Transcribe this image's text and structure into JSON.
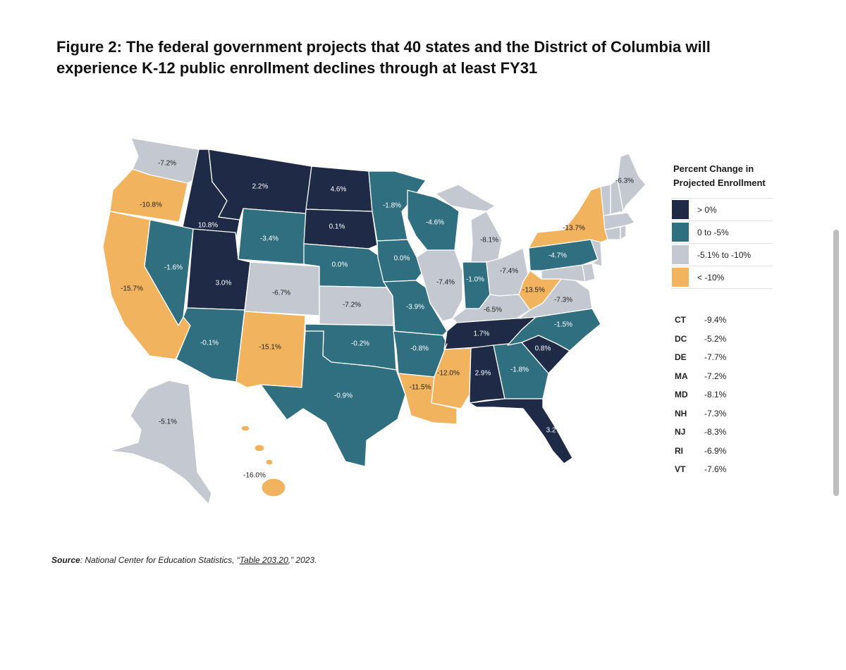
{
  "figure": {
    "title": "Figure 2: The federal government projects that 40 states and the District of Columbia will experience K-12 public enrollment declines through at least FY31"
  },
  "legend": {
    "title": "Percent Change in Projected Enrollment",
    "items": [
      {
        "label": "> 0%",
        "color": "#1e2a46"
      },
      {
        "label": "0 to -5%",
        "color": "#2f6f80"
      },
      {
        "label": "-5.1% to -10%",
        "color": "#c4c8d0"
      },
      {
        "label": "< -10%",
        "color": "#f2b35e"
      }
    ]
  },
  "small_states": [
    {
      "abbr": "CT",
      "value": "-9.4%"
    },
    {
      "abbr": "DC",
      "value": "-5.2%"
    },
    {
      "abbr": "DE",
      "value": "-7.7%"
    },
    {
      "abbr": "MA",
      "value": "-7.2%"
    },
    {
      "abbr": "MD",
      "value": "-8.1%"
    },
    {
      "abbr": "NH",
      "value": "-7.3%"
    },
    {
      "abbr": "NJ",
      "value": "-8.3%"
    },
    {
      "abbr": "RI",
      "value": "-6.9%"
    },
    {
      "abbr": "VT",
      "value": "-7.6%"
    }
  ],
  "map_labels": {
    "WA": "-7.2%",
    "OR": "-10.8%",
    "CA": "-15.7%",
    "ID": "10.8%",
    "NV": "-1.6%",
    "MT": "2.2%",
    "WY": "-3.4%",
    "UT": "3.0%",
    "AZ": "-0.1%",
    "CO": "-6.7%",
    "NM": "-15.1%",
    "ND": "4.6%",
    "SD": "0.1%",
    "NE": "0.0%",
    "KS": "-7.2%",
    "OK": "-0.2%",
    "TX": "-0.9%",
    "MN": "-1.8%",
    "IA": "0.0%",
    "MO": "-3.9%",
    "AR": "-0.8%",
    "LA": "-11.5%",
    "WI": "-4.6%",
    "IL": "-7.4%",
    "MI": "-8.1%",
    "IN": "-1.0%",
    "OH": "-7.4%",
    "KY": "-6.5%",
    "TN": "1.7%",
    "MS": "-12.0%",
    "AL": "2.9%",
    "GA": "-1.8%",
    "FL": "3.2%",
    "SC": "0.8%",
    "NC": "-1.5%",
    "VA": "-7.3%",
    "WV": "-13.5%",
    "PA": "-4.7%",
    "NY": "-13.7%",
    "ME": "-6.3%",
    "AK": "-5.1%",
    "HI": "-16.0%"
  },
  "source": {
    "prefix": "Source",
    "text_before": ": National Center for Education Statistics, “",
    "link": "Table 203.20",
    "text_after": ",” 2023."
  }
}
